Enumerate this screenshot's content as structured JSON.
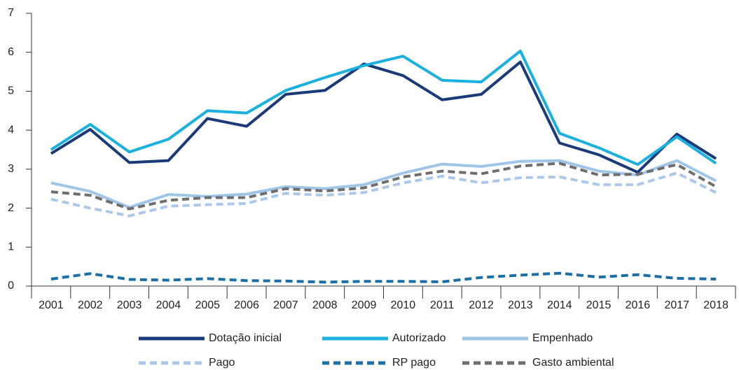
{
  "chart_data": {
    "type": "line",
    "categories": [
      "2001",
      "2002",
      "2003",
      "2004",
      "2005",
      "2006",
      "2007",
      "2008",
      "2009",
      "2010",
      "2011",
      "2012",
      "2013",
      "2014",
      "2015",
      "2016",
      "2017",
      "2018"
    ],
    "ylim": [
      0,
      7
    ],
    "yticks": [
      0,
      1,
      2,
      3,
      4,
      5,
      6,
      7
    ],
    "series": [
      {
        "name": "Dotação inicial",
        "color": "#1b3a7a",
        "dashed": false,
        "values": [
          3.4,
          4.02,
          3.17,
          3.22,
          4.3,
          4.1,
          4.92,
          5.02,
          5.7,
          5.4,
          4.78,
          4.92,
          5.75,
          3.67,
          3.37,
          2.92,
          3.9,
          3.27
        ]
      },
      {
        "name": "Autorizado",
        "color": "#1ab0df",
        "dashed": false,
        "values": [
          3.5,
          4.15,
          3.44,
          3.77,
          4.5,
          4.44,
          5.02,
          5.35,
          5.66,
          5.9,
          5.28,
          5.24,
          6.03,
          3.92,
          3.55,
          3.12,
          3.83,
          3.15
        ]
      },
      {
        "name": "Empenhado",
        "color": "#9fc5e8",
        "dashed": false,
        "values": [
          2.65,
          2.43,
          2.02,
          2.35,
          2.3,
          2.36,
          2.55,
          2.5,
          2.6,
          2.9,
          3.13,
          3.07,
          3.2,
          3.22,
          2.95,
          2.85,
          3.22,
          2.7
        ]
      },
      {
        "name": "Pago",
        "color": "#aac9ea",
        "dashed": true,
        "values": [
          2.23,
          2.0,
          1.8,
          2.05,
          2.09,
          2.12,
          2.38,
          2.33,
          2.4,
          2.65,
          2.82,
          2.65,
          2.78,
          2.8,
          2.6,
          2.6,
          2.9,
          2.4
        ]
      },
      {
        "name": "RP pago",
        "color": "#1a6fa8",
        "dashed": true,
        "values": [
          0.18,
          0.32,
          0.17,
          0.15,
          0.19,
          0.14,
          0.13,
          0.1,
          0.12,
          0.12,
          0.11,
          0.22,
          0.28,
          0.33,
          0.23,
          0.29,
          0.2,
          0.18
        ]
      },
      {
        "name": "Gasto ambiental",
        "color": "#6e6e6e",
        "dashed": true,
        "values": [
          2.42,
          2.33,
          1.98,
          2.2,
          2.27,
          2.27,
          2.5,
          2.44,
          2.52,
          2.8,
          2.95,
          2.88,
          3.08,
          3.15,
          2.85,
          2.87,
          3.12,
          2.55
        ]
      }
    ]
  }
}
